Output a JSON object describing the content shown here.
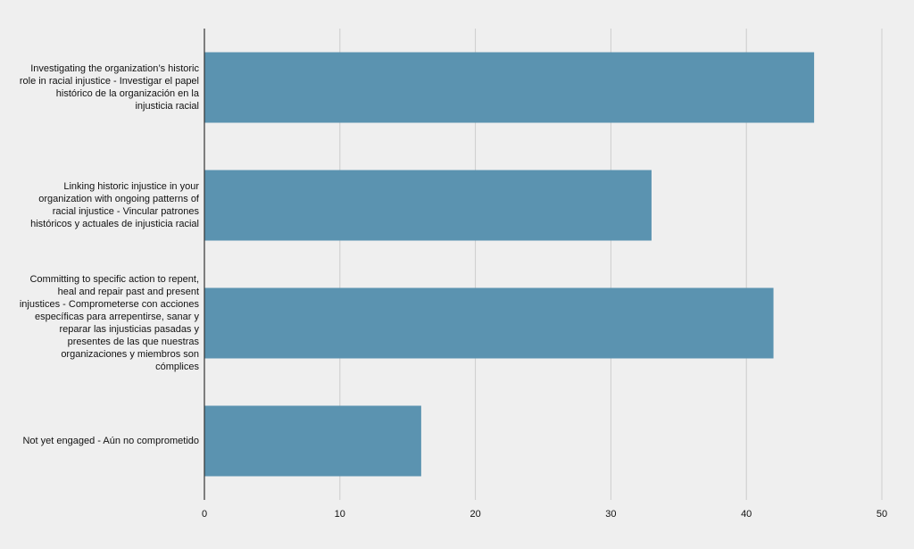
{
  "chart_data": {
    "type": "bar",
    "orientation": "horizontal",
    "title": "",
    "xlabel": "",
    "ylabel": "",
    "categories": [
      "Investigating the organization’s historic role in racial injustice - Investigar el papel histórico de la organización en la injusticia racial",
      "Linking historic injustice in your organization with ongoing patterns of racial injustice - Vincular patrones históricos y actuales de injusticia racial",
      "Committing to specific action to repent, heal and repair past and present injustices - Comprometerse con acciones específicas para arrepentirse, sanar y reparar las injusticias pasadas y presentes de las que nuestras organizaciones y miembros son cómplices",
      "Not yet engaged - Aún no comprometido"
    ],
    "values": [
      45,
      33,
      42,
      16
    ],
    "xlim": [
      0,
      50
    ],
    "xticks": [
      "0",
      "10",
      "20",
      "30",
      "40",
      "50"
    ],
    "grid": true,
    "legend": "none",
    "colors": {
      "bar": "#5b93b0",
      "grid": "#cccccc",
      "axis": "#333333",
      "background": "#efefef",
      "text": "#111111"
    }
  }
}
